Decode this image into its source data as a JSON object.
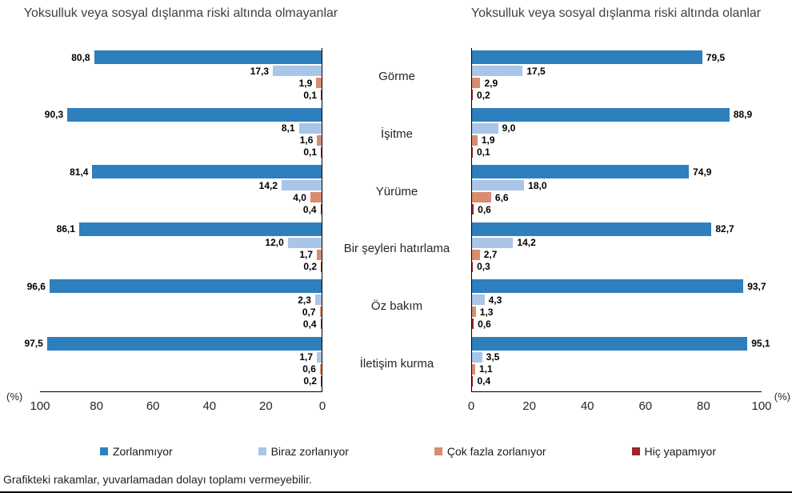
{
  "chart_data": {
    "type": "bar",
    "orientation": "horizontal",
    "unit": "%",
    "xlim": [
      0,
      100
    ],
    "grid": false,
    "categories": [
      "Görme",
      "İşitme",
      "Yürüme",
      "Bir şeyleri hatırlama",
      "Öz bakım",
      "İletişim kurma"
    ],
    "series_labels": [
      "Zorlanmıyor",
      "Biraz zorlanıyor",
      "Çok fazla zorlanıyor",
      "Hiç yapamıyor"
    ],
    "colors": [
      "#2E7FBE",
      "#A9C5E8",
      "#D98C70",
      "#9E2428"
    ],
    "panels": [
      {
        "id": "not-at-risk",
        "title": "Yoksulluk veya sosyal dışlanma riski altında olmayanlar",
        "direction": "rtl",
        "axis_ticks": [
          "100",
          "80",
          "60",
          "40",
          "20",
          "0"
        ],
        "percent_label": "(%)",
        "values": [
          [
            "80,8",
            "17,3",
            "1,9",
            "0,1"
          ],
          [
            "90,3",
            "8,1",
            "1,6",
            "0,1"
          ],
          [
            "81,4",
            "14,2",
            "4,0",
            "0,4"
          ],
          [
            "86,1",
            "12,0",
            "1,7",
            "0,2"
          ],
          [
            "96,6",
            "2,3",
            "0,7",
            "0,4"
          ],
          [
            "97,5",
            "1,7",
            "0,6",
            "0,2"
          ]
        ]
      },
      {
        "id": "at-risk",
        "title": "Yoksulluk veya sosyal dışlanma riski altında olanlar",
        "direction": "ltr",
        "axis_ticks": [
          "0",
          "20",
          "40",
          "60",
          "80",
          "100"
        ],
        "percent_label": "(%)",
        "values": [
          [
            "79,5",
            "17,5",
            "2,9",
            "0,2"
          ],
          [
            "88,9",
            "9,0",
            "1,9",
            "0,1"
          ],
          [
            "74,9",
            "18,0",
            "6,6",
            "0,6"
          ],
          [
            "82,7",
            "14,2",
            "2,7",
            "0,3"
          ],
          [
            "93,7",
            "4,3",
            "1,3",
            "0,6"
          ],
          [
            "95,1",
            "3,5",
            "1,1",
            "0,4"
          ]
        ]
      }
    ]
  },
  "legend": {
    "items": [
      {
        "label": "Zorlanmıyor",
        "color": "#2E7FBE"
      },
      {
        "label": "Biraz zorlanıyor",
        "color": "#A9C5E8"
      },
      {
        "label": "Çok fazla zorlanıyor",
        "color": "#D98C70"
      },
      {
        "label": "Hiç yapamıyor",
        "color": "#9E2428"
      }
    ]
  },
  "footnote": "Grafikteki rakamlar, yuvarlamadan dolayı toplamı vermeyebilir."
}
